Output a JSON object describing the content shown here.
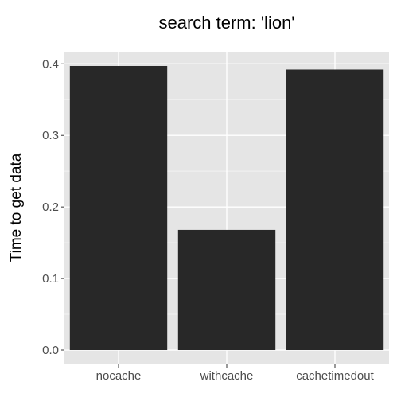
{
  "chart_data": {
    "type": "bar",
    "title": "search term: 'lion'",
    "xlabel": "",
    "ylabel": "Time to get data",
    "categories": [
      "nocache",
      "withcache",
      "cachetimedout"
    ],
    "values": [
      0.397,
      0.168,
      0.392
    ],
    "ylim": [
      -0.02,
      0.417
    ],
    "yticks": [
      0.0,
      0.1,
      0.2,
      0.3,
      0.4
    ],
    "ytick_labels": [
      "0.0",
      "0.1",
      "0.2",
      "0.3",
      "0.4"
    ],
    "grid": true,
    "legend": "none",
    "colors": {
      "bar": "#282828",
      "panel_background": "#e5e5e5",
      "grid_major": "#ffffff",
      "grid_minor": "#f2f2f2",
      "tick_text": "#4d4d4d"
    }
  }
}
